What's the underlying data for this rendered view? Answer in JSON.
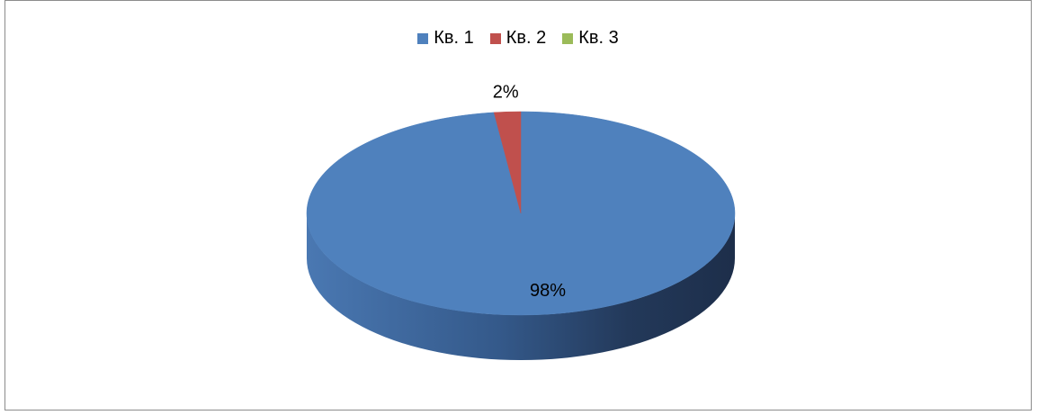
{
  "chart_data": {
    "type": "pie",
    "title": "",
    "legend_position": "top",
    "categories": [
      "Кв. 1",
      "Кв. 2",
      "Кв. 3"
    ],
    "values": [
      98,
      2,
      0
    ],
    "data_labels": [
      "98%",
      "2%",
      ""
    ],
    "colors": [
      "#4f81bd",
      "#c0504d",
      "#9bbb59"
    ],
    "three_d": true
  }
}
